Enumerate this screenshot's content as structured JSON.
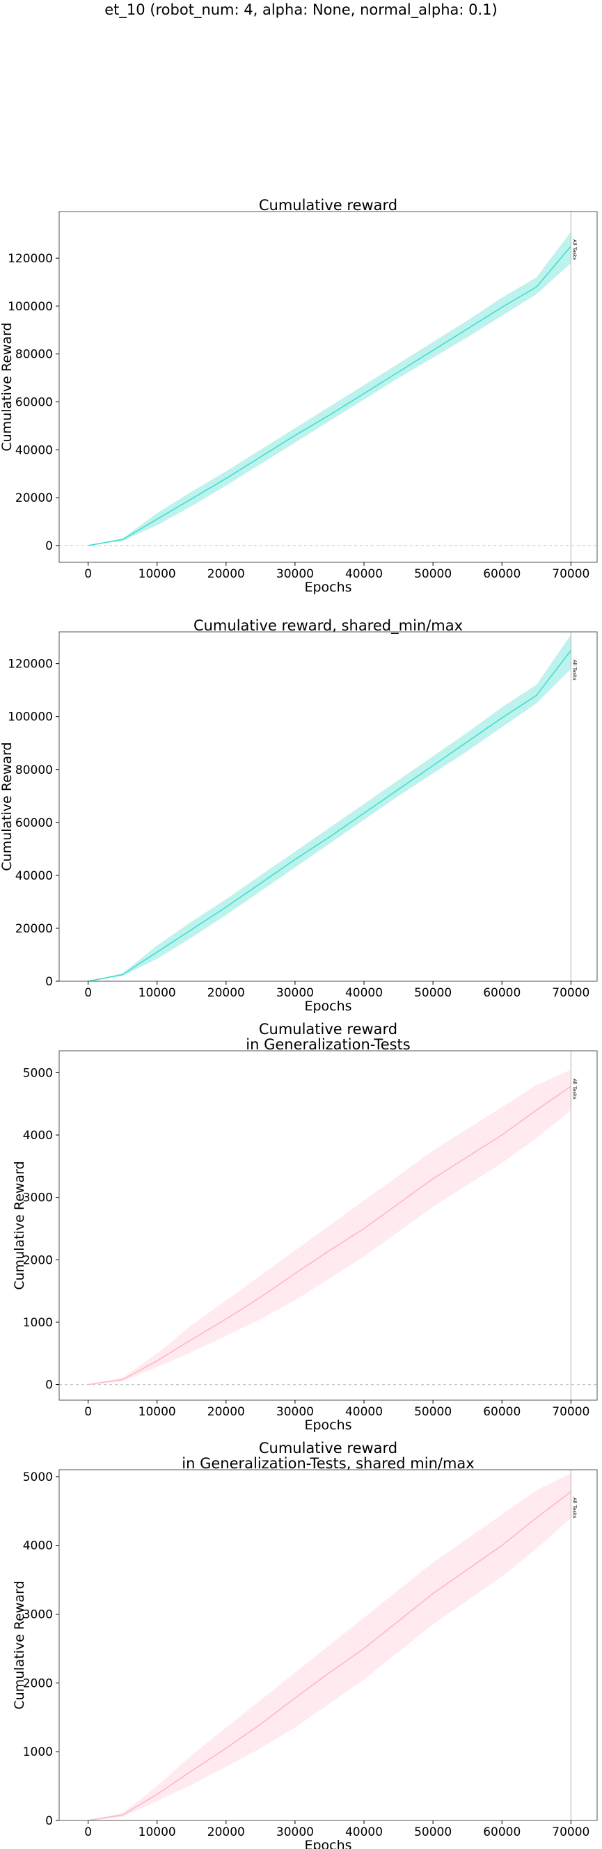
{
  "suptitle": "et_10 (robot_num: 4, alpha: None, normal_alpha: 0.1)",
  "chart_data": [
    {
      "type": "line",
      "title": [
        "Cumulative reward"
      ],
      "xlabel": "Epochs",
      "ylabel": "Cumulative Reward",
      "xlim": [
        -4200,
        73800
      ],
      "ylim": [
        -7000,
        139500
      ],
      "xticks": [
        0,
        10000,
        20000,
        30000,
        40000,
        50000,
        60000,
        70000
      ],
      "yticks": [
        0,
        20000,
        40000,
        60000,
        80000,
        100000,
        120000
      ],
      "zero_line": true,
      "vline": {
        "x": 70000,
        "label": "All Tasks"
      },
      "color": "#40e0d0",
      "band_color": "#b2f0ea",
      "series": [
        {
          "x": [
            0,
            5000,
            10000,
            15000,
            20000,
            25000,
            30000,
            35000,
            40000,
            45000,
            50000,
            55000,
            60000,
            65000,
            70000
          ],
          "y": [
            0,
            2500,
            11000,
            19500,
            28000,
            37000,
            46000,
            54500,
            63500,
            72500,
            81500,
            90500,
            99500,
            108000,
            125000
          ],
          "y_low": [
            0,
            2000,
            8500,
            16500,
            25000,
            34000,
            43000,
            52000,
            61000,
            70000,
            78500,
            87000,
            96000,
            105000,
            118000
          ],
          "y_high": [
            0,
            3000,
            13500,
            22500,
            31000,
            40000,
            49000,
            58000,
            67000,
            76000,
            85000,
            94000,
            103500,
            112000,
            131000
          ]
        }
      ]
    },
    {
      "type": "line",
      "title": [
        "Cumulative reward, shared_min/max"
      ],
      "xlabel": "Epochs",
      "ylabel": "Cumulative Reward",
      "xlim": [
        -4200,
        73800
      ],
      "ylim": [
        0,
        132000
      ],
      "xticks": [
        0,
        10000,
        20000,
        30000,
        40000,
        50000,
        60000,
        70000
      ],
      "yticks": [
        0,
        20000,
        40000,
        60000,
        80000,
        100000,
        120000
      ],
      "zero_line": false,
      "vline": {
        "x": 70000,
        "label": "All Tasks"
      },
      "color": "#40e0d0",
      "band_color": "#b2f0ea",
      "series": [
        {
          "x": [
            0,
            5000,
            10000,
            15000,
            20000,
            25000,
            30000,
            35000,
            40000,
            45000,
            50000,
            55000,
            60000,
            65000,
            70000
          ],
          "y": [
            0,
            2500,
            11000,
            19500,
            28000,
            37000,
            46000,
            54500,
            63500,
            72500,
            81500,
            90500,
            99500,
            108000,
            125000
          ],
          "y_low": [
            0,
            2000,
            8500,
            16500,
            25000,
            34000,
            43000,
            52000,
            61000,
            70000,
            78500,
            87000,
            96000,
            105000,
            118000
          ],
          "y_high": [
            0,
            3000,
            13500,
            22500,
            31000,
            40000,
            49000,
            58000,
            67000,
            76000,
            85000,
            94000,
            103500,
            112000,
            131000
          ]
        }
      ]
    },
    {
      "type": "line",
      "title": [
        "Cumulative reward",
        "in Generalization-Tests"
      ],
      "xlabel": "Epochs",
      "ylabel": "Cumulative Reward",
      "xlim": [
        -4200,
        73800
      ],
      "ylim": [
        -250,
        5350
      ],
      "xticks": [
        0,
        10000,
        20000,
        30000,
        40000,
        50000,
        60000,
        70000
      ],
      "yticks": [
        0,
        1000,
        2000,
        3000,
        4000,
        5000
      ],
      "zero_line": true,
      "vline": {
        "x": 70000,
        "label": "All Tasks"
      },
      "color": "#ffb6c1",
      "band_color": "#ffe8ec",
      "series": [
        {
          "x": [
            0,
            5000,
            10000,
            15000,
            20000,
            25000,
            30000,
            35000,
            40000,
            45000,
            50000,
            55000,
            60000,
            65000,
            70000
          ],
          "y": [
            0,
            80,
            380,
            720,
            1050,
            1400,
            1780,
            2150,
            2500,
            2900,
            3300,
            3650,
            4000,
            4400,
            4780
          ],
          "y_low": [
            0,
            50,
            280,
            520,
            780,
            1050,
            1350,
            1700,
            2050,
            2450,
            2850,
            3200,
            3550,
            3950,
            4400
          ],
          "y_high": [
            0,
            110,
            500,
            950,
            1350,
            1750,
            2150,
            2550,
            2950,
            3350,
            3750,
            4100,
            4450,
            4800,
            5050
          ]
        }
      ]
    },
    {
      "type": "line",
      "title": [
        "Cumulative reward",
        "in Generalization-Tests, shared min/max"
      ],
      "xlabel": "Epochs",
      "ylabel": "Cumulative Reward",
      "xlim": [
        -4200,
        73800
      ],
      "ylim": [
        0,
        5100
      ],
      "xticks": [
        0,
        10000,
        20000,
        30000,
        40000,
        50000,
        60000,
        70000
      ],
      "yticks": [
        0,
        1000,
        2000,
        3000,
        4000,
        5000
      ],
      "zero_line": false,
      "vline": {
        "x": 70000,
        "label": "All Tasks"
      },
      "color": "#ffb6c1",
      "band_color": "#ffe8ec",
      "series": [
        {
          "x": [
            0,
            5000,
            10000,
            15000,
            20000,
            25000,
            30000,
            35000,
            40000,
            45000,
            50000,
            55000,
            60000,
            65000,
            70000
          ],
          "y": [
            0,
            80,
            380,
            720,
            1050,
            1400,
            1780,
            2150,
            2500,
            2900,
            3300,
            3650,
            4000,
            4400,
            4780
          ],
          "y_low": [
            0,
            50,
            280,
            520,
            780,
            1050,
            1350,
            1700,
            2050,
            2450,
            2850,
            3200,
            3550,
            3950,
            4400
          ],
          "y_high": [
            0,
            110,
            500,
            950,
            1350,
            1750,
            2150,
            2550,
            2950,
            3350,
            3750,
            4100,
            4450,
            4800,
            5050
          ]
        }
      ]
    }
  ]
}
